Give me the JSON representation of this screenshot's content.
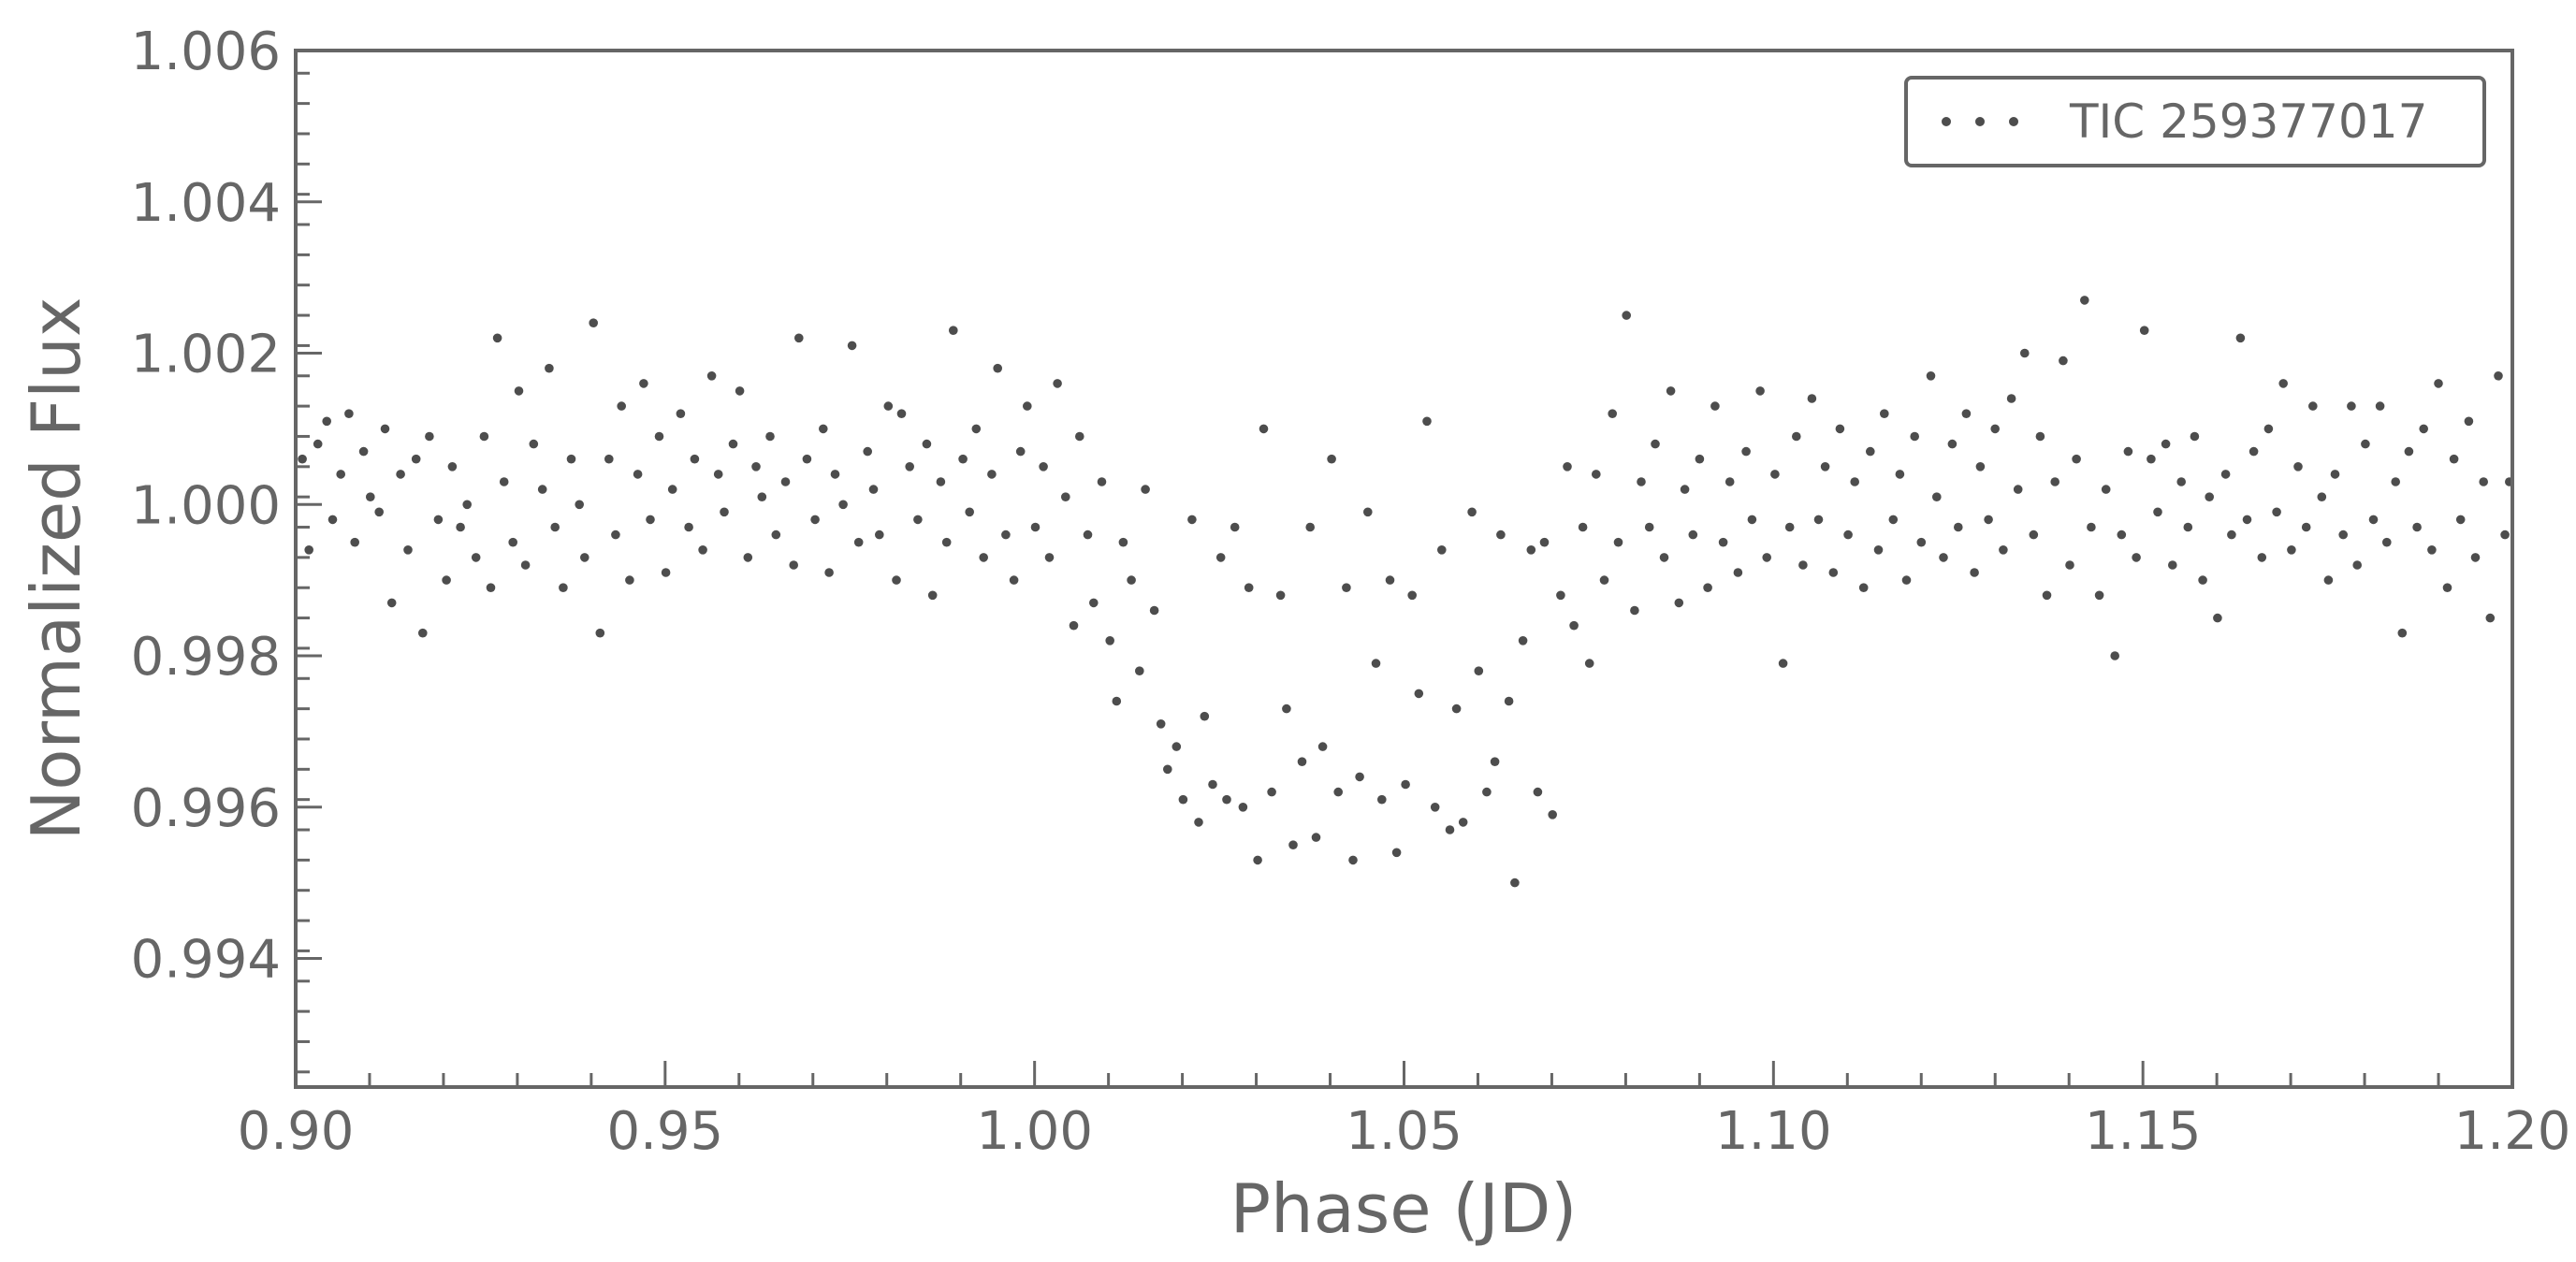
{
  "chart_data": {
    "type": "scatter",
    "xlabel": "Phase (JD)",
    "ylabel": "Normalized Flux",
    "xlim": [
      0.9,
      1.2
    ],
    "ylim": [
      0.9923,
      1.006
    ],
    "xticks": [
      "0.90",
      "0.95",
      "1.00",
      "1.05",
      "1.10",
      "1.15",
      "1.20"
    ],
    "yticks": [
      "0.994",
      "0.996",
      "0.998",
      "1.000",
      "1.002",
      "1.004",
      "1.006"
    ],
    "grid": false,
    "legend_position": "top-right",
    "color": "#4d4d4d",
    "series": [
      {
        "name": "TIC 259377017",
        "points": [
          [
            0.9009,
            1.0006
          ],
          [
            0.9018,
            0.9994
          ],
          [
            0.903,
            1.0008
          ],
          [
            0.9042,
            1.0011
          ],
          [
            0.905,
            0.9998
          ],
          [
            0.9061,
            1.0004
          ],
          [
            0.9072,
            1.0012
          ],
          [
            0.908,
            0.9995
          ],
          [
            0.9092,
            1.0007
          ],
          [
            0.9101,
            1.0001
          ],
          [
            0.9113,
            0.9999
          ],
          [
            0.9121,
            1.001
          ],
          [
            0.913,
            0.9987
          ],
          [
            0.9142,
            1.0004
          ],
          [
            0.9152,
            0.9994
          ],
          [
            0.9163,
            1.0006
          ],
          [
            0.9172,
            0.9983
          ],
          [
            0.9181,
            1.0009
          ],
          [
            0.9193,
            0.9998
          ],
          [
            0.9204,
            0.999
          ],
          [
            0.9212,
            1.0005
          ],
          [
            0.9223,
            0.9997
          ],
          [
            0.9232,
            1.0
          ],
          [
            0.9244,
            0.9993
          ],
          [
            0.9255,
            1.0009
          ],
          [
            0.9264,
            0.9989
          ],
          [
            0.9273,
            1.0022
          ],
          [
            0.9282,
            1.0003
          ],
          [
            0.9294,
            0.9995
          ],
          [
            0.9302,
            1.0015
          ],
          [
            0.9311,
            0.9992
          ],
          [
            0.9322,
            1.0008
          ],
          [
            0.9334,
            1.0002
          ],
          [
            0.9343,
            1.0018
          ],
          [
            0.9351,
            0.9997
          ],
          [
            0.9362,
            0.9989
          ],
          [
            0.9373,
            1.0006
          ],
          [
            0.9384,
            1.0
          ],
          [
            0.9391,
            0.9993
          ],
          [
            0.9403,
            1.0024
          ],
          [
            0.9412,
            0.9983
          ],
          [
            0.9424,
            1.0006
          ],
          [
            0.9433,
            0.9996
          ],
          [
            0.9441,
            1.0013
          ],
          [
            0.9452,
            0.999
          ],
          [
            0.9463,
            1.0004
          ],
          [
            0.9471,
            1.0016
          ],
          [
            0.948,
            0.9998
          ],
          [
            0.9492,
            1.0009
          ],
          [
            0.9501,
            0.9991
          ],
          [
            0.951,
            1.0002
          ],
          [
            0.9521,
            1.0012
          ],
          [
            0.9532,
            0.9997
          ],
          [
            0.954,
            1.0006
          ],
          [
            0.9551,
            0.9994
          ],
          [
            0.9563,
            1.0017
          ],
          [
            0.9572,
            1.0004
          ],
          [
            0.958,
            0.9999
          ],
          [
            0.9592,
            1.0008
          ],
          [
            0.9601,
            1.0015
          ],
          [
            0.9612,
            0.9993
          ],
          [
            0.9623,
            1.0005
          ],
          [
            0.9631,
            1.0001
          ],
          [
            0.9642,
            1.0009
          ],
          [
            0.965,
            0.9996
          ],
          [
            0.9663,
            1.0003
          ],
          [
            0.9674,
            0.9992
          ],
          [
            0.9681,
            1.0022
          ],
          [
            0.9692,
            1.0006
          ],
          [
            0.9703,
            0.9998
          ],
          [
            0.9714,
            1.001
          ],
          [
            0.9722,
            0.9991
          ],
          [
            0.973,
            1.0004
          ],
          [
            0.9741,
            1.0
          ],
          [
            0.9753,
            1.0021
          ],
          [
            0.9762,
            0.9995
          ],
          [
            0.9774,
            1.0007
          ],
          [
            0.9782,
            1.0002
          ],
          [
            0.979,
            0.9996
          ],
          [
            0.9802,
            1.0013
          ],
          [
            0.9813,
            0.999
          ],
          [
            0.982,
            1.0012
          ],
          [
            0.9831,
            1.0005
          ],
          [
            0.9842,
            0.9998
          ],
          [
            0.9854,
            1.0008
          ],
          [
            0.9862,
            0.9988
          ],
          [
            0.9873,
            1.0003
          ],
          [
            0.9881,
            0.9995
          ],
          [
            0.989,
            1.0023
          ],
          [
            0.9903,
            1.0006
          ],
          [
            0.9912,
            0.9999
          ],
          [
            0.9921,
            1.001
          ],
          [
            0.9931,
            0.9993
          ],
          [
            0.9942,
            1.0004
          ],
          [
            0.995,
            1.0018
          ],
          [
            0.9961,
            0.9996
          ],
          [
            0.9972,
            0.999
          ],
          [
            0.9981,
            1.0007
          ],
          [
            0.999,
            1.0013
          ],
          [
            1.0001,
            0.9997
          ],
          [
            1.0012,
            1.0005
          ],
          [
            1.002,
            0.9993
          ],
          [
            1.0031,
            1.0016
          ],
          [
            1.0042,
            1.0001
          ],
          [
            1.0053,
            0.9984
          ],
          [
            1.0061,
            1.0009
          ],
          [
            1.0072,
            0.9996
          ],
          [
            1.008,
            0.9987
          ],
          [
            1.0091,
            1.0003
          ],
          [
            1.0102,
            0.9982
          ],
          [
            1.0111,
            0.9974
          ],
          [
            1.012,
            0.9995
          ],
          [
            1.0131,
            0.999
          ],
          [
            1.0142,
            0.9978
          ],
          [
            1.015,
            1.0002
          ],
          [
            1.0162,
            0.9986
          ],
          [
            1.0171,
            0.9971
          ],
          [
            1.018,
            0.9965
          ],
          [
            1.0192,
            0.9968
          ],
          [
            1.0201,
            0.9961
          ],
          [
            1.0213,
            0.9998
          ],
          [
            1.0222,
            0.9958
          ],
          [
            1.023,
            0.9972
          ],
          [
            1.0241,
            0.9963
          ],
          [
            1.0252,
            0.9993
          ],
          [
            1.026,
            0.9961
          ],
          [
            1.0271,
            0.9997
          ],
          [
            1.0282,
            0.996
          ],
          [
            1.029,
            0.9989
          ],
          [
            1.0302,
            0.9953
          ],
          [
            1.031,
            1.001
          ],
          [
            1.0321,
            0.9962
          ],
          [
            1.0333,
            0.9988
          ],
          [
            1.0341,
            0.9973
          ],
          [
            1.035,
            0.9955
          ],
          [
            1.0362,
            0.9966
          ],
          [
            1.0373,
            0.9997
          ],
          [
            1.0381,
            0.9956
          ],
          [
            1.039,
            0.9968
          ],
          [
            1.0402,
            1.0006
          ],
          [
            1.0411,
            0.9962
          ],
          [
            1.0422,
            0.9989
          ],
          [
            1.0431,
            0.9953
          ],
          [
            1.044,
            0.9964
          ],
          [
            1.0451,
            0.9999
          ],
          [
            1.0462,
            0.9979
          ],
          [
            1.047,
            0.9961
          ],
          [
            1.0481,
            0.999
          ],
          [
            1.049,
            0.9954
          ],
          [
            1.0502,
            0.9963
          ],
          [
            1.0511,
            0.9988
          ],
          [
            1.052,
            0.9975
          ],
          [
            1.0531,
            1.0011
          ],
          [
            1.0542,
            0.996
          ],
          [
            1.0551,
            0.9994
          ],
          [
            1.0562,
            0.9957
          ],
          [
            1.0571,
            0.9973
          ],
          [
            1.058,
            0.9958
          ],
          [
            1.0592,
            0.9999
          ],
          [
            1.0601,
            0.9978
          ],
          [
            1.0612,
            0.9962
          ],
          [
            1.0623,
            0.9966
          ],
          [
            1.0631,
            0.9996
          ],
          [
            1.0642,
            0.9974
          ],
          [
            1.065,
            0.995
          ],
          [
            1.0661,
            0.9982
          ],
          [
            1.0672,
            0.9994
          ],
          [
            1.0681,
            0.9962
          ],
          [
            1.069,
            0.9995
          ],
          [
            1.0701,
            0.9959
          ],
          [
            1.0712,
            0.9988
          ],
          [
            1.0721,
            1.0005
          ],
          [
            1.073,
            0.9984
          ],
          [
            1.0742,
            0.9997
          ],
          [
            1.0751,
            0.9979
          ],
          [
            1.076,
            1.0004
          ],
          [
            1.0771,
            0.999
          ],
          [
            1.0782,
            1.0012
          ],
          [
            1.079,
            0.9995
          ],
          [
            1.0801,
            1.0025
          ],
          [
            1.0812,
            0.9986
          ],
          [
            1.0821,
            1.0003
          ],
          [
            1.0832,
            0.9997
          ],
          [
            1.084,
            1.0008
          ],
          [
            1.0852,
            0.9993
          ],
          [
            1.0861,
            1.0015
          ],
          [
            1.0872,
            0.9987
          ],
          [
            1.088,
            1.0002
          ],
          [
            1.0891,
            0.9996
          ],
          [
            1.09,
            1.0006
          ],
          [
            1.0911,
            0.9989
          ],
          [
            1.0921,
            1.0013
          ],
          [
            1.0932,
            0.9995
          ],
          [
            1.0941,
            1.0003
          ],
          [
            1.0952,
            0.9991
          ],
          [
            1.0963,
            1.0007
          ],
          [
            1.0971,
            0.9998
          ],
          [
            1.0982,
            1.0015
          ],
          [
            1.0991,
            0.9993
          ],
          [
            1.1002,
            1.0004
          ],
          [
            1.1013,
            0.9979
          ],
          [
            1.1022,
            0.9997
          ],
          [
            1.1031,
            1.0009
          ],
          [
            1.104,
            0.9992
          ],
          [
            1.1052,
            1.0014
          ],
          [
            1.1061,
            0.9998
          ],
          [
            1.107,
            1.0005
          ],
          [
            1.1081,
            0.9991
          ],
          [
            1.109,
            1.001
          ],
          [
            1.1101,
            0.9996
          ],
          [
            1.111,
            1.0003
          ],
          [
            1.1122,
            0.9989
          ],
          [
            1.1131,
            1.0007
          ],
          [
            1.1142,
            0.9994
          ],
          [
            1.115,
            1.0012
          ],
          [
            1.1162,
            0.9998
          ],
          [
            1.1171,
            1.0004
          ],
          [
            1.118,
            0.999
          ],
          [
            1.1191,
            1.0009
          ],
          [
            1.12,
            0.9995
          ],
          [
            1.1213,
            1.0017
          ],
          [
            1.1221,
            1.0001
          ],
          [
            1.123,
            0.9993
          ],
          [
            1.1242,
            1.0008
          ],
          [
            1.125,
            0.9997
          ],
          [
            1.1261,
            1.0012
          ],
          [
            1.1272,
            0.9991
          ],
          [
            1.128,
            1.0005
          ],
          [
            1.1291,
            0.9998
          ],
          [
            1.13,
            1.001
          ],
          [
            1.1311,
            0.9994
          ],
          [
            1.1322,
            1.0014
          ],
          [
            1.1331,
            1.0002
          ],
          [
            1.134,
            1.002
          ],
          [
            1.1352,
            0.9996
          ],
          [
            1.1361,
            1.0009
          ],
          [
            1.137,
            0.9988
          ],
          [
            1.1381,
            1.0003
          ],
          [
            1.1392,
            1.0019
          ],
          [
            1.1401,
            0.9992
          ],
          [
            1.141,
            1.0006
          ],
          [
            1.1421,
            1.0027
          ],
          [
            1.143,
            0.9997
          ],
          [
            1.1441,
            0.9988
          ],
          [
            1.145,
            1.0002
          ],
          [
            1.1462,
            0.998
          ],
          [
            1.1471,
            0.9996
          ],
          [
            1.148,
            1.0007
          ],
          [
            1.1491,
            0.9993
          ],
          [
            1.1502,
            1.0023
          ],
          [
            1.1511,
            1.0006
          ],
          [
            1.152,
            0.9999
          ],
          [
            1.1531,
            1.0008
          ],
          [
            1.154,
            0.9992
          ],
          [
            1.1552,
            1.0003
          ],
          [
            1.1561,
            0.9997
          ],
          [
            1.157,
            1.0009
          ],
          [
            1.1581,
            0.999
          ],
          [
            1.159,
            1.0001
          ],
          [
            1.1601,
            0.9985
          ],
          [
            1.1612,
            1.0004
          ],
          [
            1.162,
            0.9996
          ],
          [
            1.1632,
            1.0022
          ],
          [
            1.1641,
            0.9998
          ],
          [
            1.165,
            1.0007
          ],
          [
            1.1661,
            0.9993
          ],
          [
            1.167,
            1.001
          ],
          [
            1.1681,
            0.9999
          ],
          [
            1.169,
            1.0016
          ],
          [
            1.1701,
            0.9994
          ],
          [
            1.171,
            1.0005
          ],
          [
            1.1721,
            0.9997
          ],
          [
            1.173,
            1.0013
          ],
          [
            1.1742,
            1.0001
          ],
          [
            1.1751,
            0.999
          ],
          [
            1.176,
            1.0004
          ],
          [
            1.1771,
            0.9996
          ],
          [
            1.1782,
            1.0013
          ],
          [
            1.179,
            0.9992
          ],
          [
            1.1801,
            1.0008
          ],
          [
            1.1812,
            0.9998
          ],
          [
            1.1821,
            1.0013
          ],
          [
            1.183,
            0.9995
          ],
          [
            1.1842,
            1.0003
          ],
          [
            1.1851,
            0.9983
          ],
          [
            1.186,
            1.0007
          ],
          [
            1.1871,
            0.9997
          ],
          [
            1.188,
            1.001
          ],
          [
            1.1891,
            0.9994
          ],
          [
            1.19,
            1.0016
          ],
          [
            1.1912,
            0.9989
          ],
          [
            1.1921,
            1.0006
          ],
          [
            1.193,
            0.9998
          ],
          [
            1.1941,
            1.0011
          ],
          [
            1.195,
            0.9993
          ],
          [
            1.1961,
            1.0003
          ],
          [
            1.197,
            0.9985
          ],
          [
            1.1981,
            1.0017
          ],
          [
            1.199,
            0.9996
          ],
          [
            1.1996,
            1.0003
          ]
        ]
      }
    ]
  }
}
